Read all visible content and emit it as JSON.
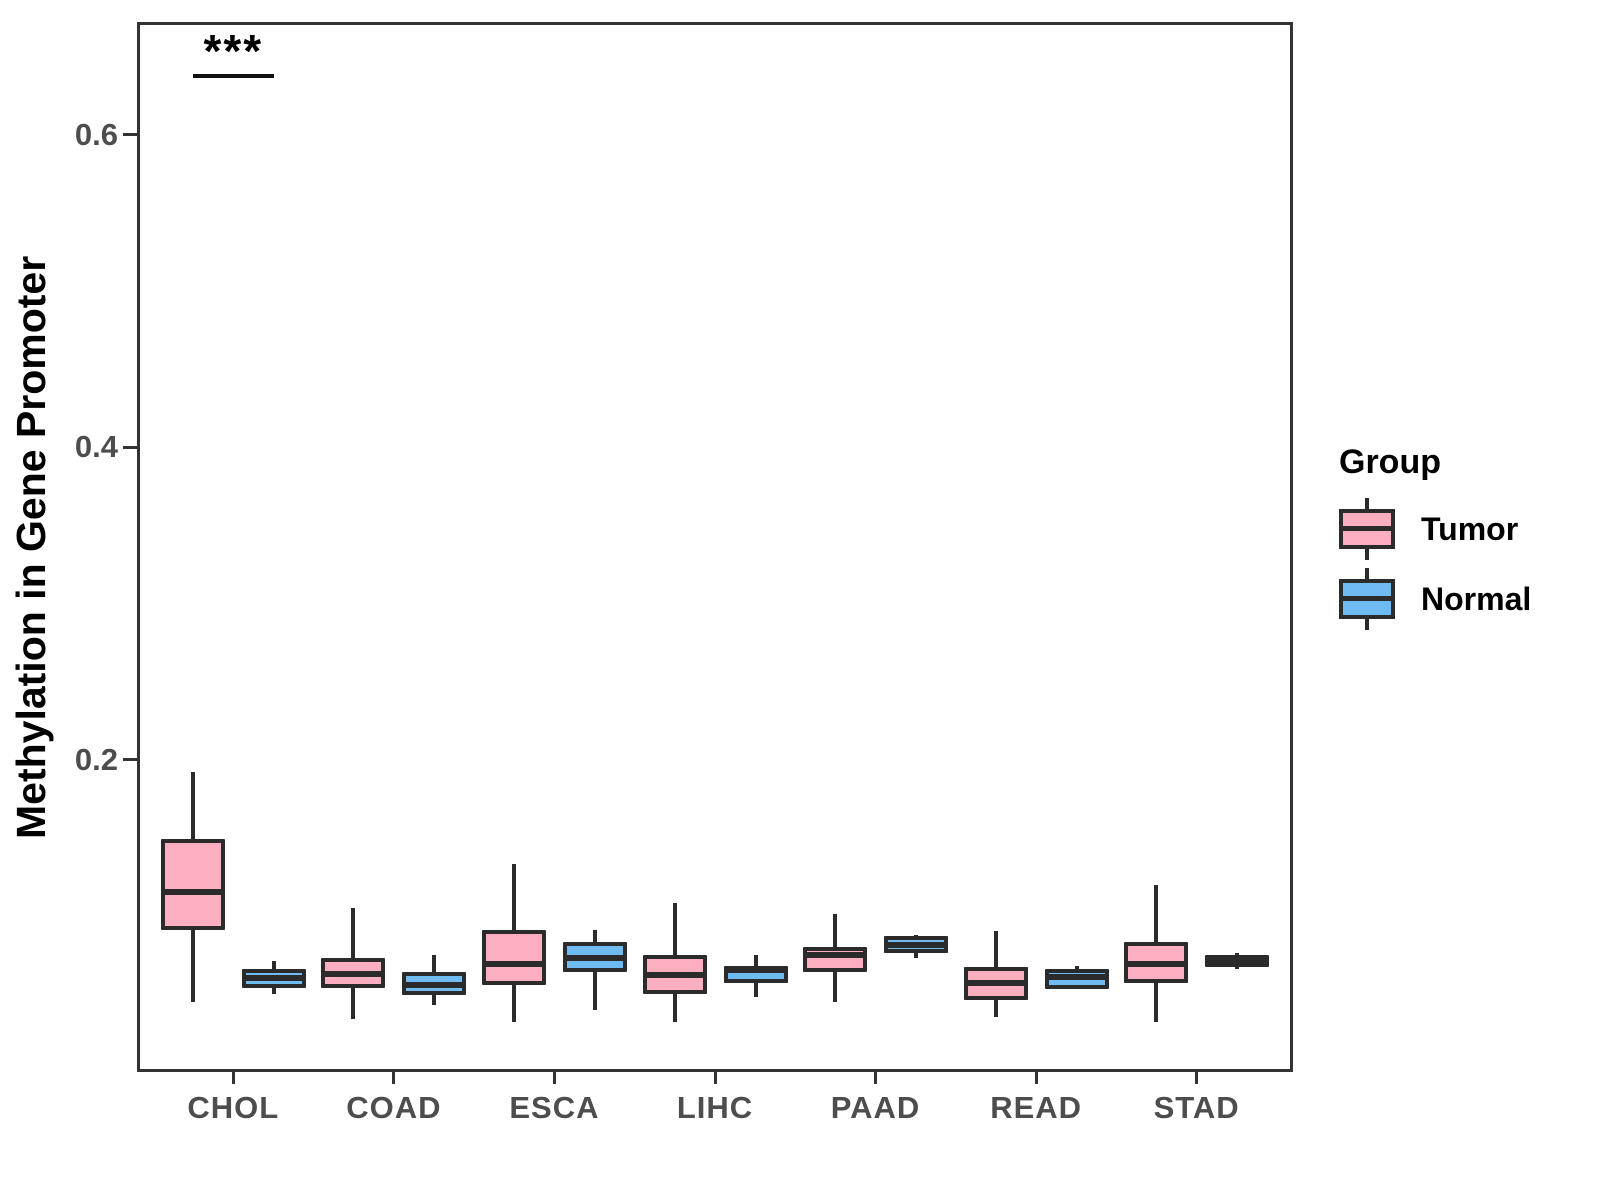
{
  "chart_data": {
    "type": "boxplot",
    "title": "",
    "xlabel": "",
    "ylabel": "Methylation in Gene Promoter",
    "categories": [
      "CHOL",
      "COAD",
      "ESCA",
      "LIHC",
      "PAAD",
      "READ",
      "STAD"
    ],
    "y_axis": {
      "tick_labels": [
        "0.2",
        "0.4",
        "0.6"
      ],
      "tick_values": [
        0.2,
        0.4,
        0.6
      ],
      "range": [
        0,
        0.672
      ],
      "grid": false
    },
    "legend": {
      "title": "Group",
      "position": "right",
      "entries": [
        {
          "label": "Tumor",
          "color": "#FBAFC1"
        },
        {
          "label": "Normal",
          "color": "#70BCF2"
        }
      ]
    },
    "series": [
      {
        "name": "Tumor",
        "color": "#FBAFC1",
        "data": [
          {
            "category": "CHOL",
            "low": 0.045,
            "q1": 0.091,
            "median": 0.115,
            "q3": 0.149,
            "high": 0.192
          },
          {
            "category": "COAD",
            "low": 0.034,
            "q1": 0.054,
            "median": 0.063,
            "q3": 0.073,
            "high": 0.105
          },
          {
            "category": "ESCA",
            "low": 0.032,
            "q1": 0.056,
            "median": 0.069,
            "q3": 0.091,
            "high": 0.133
          },
          {
            "category": "LIHC",
            "low": 0.032,
            "q1": 0.05,
            "median": 0.062,
            "q3": 0.075,
            "high": 0.108
          },
          {
            "category": "PAAD",
            "low": 0.045,
            "q1": 0.064,
            "median": 0.075,
            "q3": 0.08,
            "high": 0.101
          },
          {
            "category": "READ",
            "low": 0.035,
            "q1": 0.046,
            "median": 0.057,
            "q3": 0.067,
            "high": 0.09
          },
          {
            "category": "STAD",
            "low": 0.032,
            "q1": 0.057,
            "median": 0.069,
            "q3": 0.083,
            "high": 0.12
          }
        ]
      },
      {
        "name": "Normal",
        "color": "#70BCF2",
        "data": [
          {
            "category": "CHOL",
            "low": 0.05,
            "q1": 0.054,
            "median": 0.06,
            "q3": 0.066,
            "high": 0.071
          },
          {
            "category": "COAD",
            "low": 0.043,
            "q1": 0.049,
            "median": 0.056,
            "q3": 0.064,
            "high": 0.075
          },
          {
            "category": "ESCA",
            "low": 0.04,
            "q1": 0.064,
            "median": 0.073,
            "q3": 0.083,
            "high": 0.091
          },
          {
            "category": "LIHC",
            "low": 0.048,
            "q1": 0.057,
            "median": 0.065,
            "q3": 0.068,
            "high": 0.075
          },
          {
            "category": "PAAD",
            "low": 0.073,
            "q1": 0.076,
            "median": 0.081,
            "q3": 0.087,
            "high": 0.088
          },
          {
            "category": "READ",
            "low": 0.053,
            "q1": 0.053,
            "median": 0.061,
            "q3": 0.066,
            "high": 0.068
          },
          {
            "category": "STAD",
            "low": 0.066,
            "q1": 0.067,
            "median": 0.071,
            "q3": 0.075,
            "high": 0.076
          }
        ]
      }
    ],
    "annotations": [
      {
        "category": "CHOL",
        "label": "***",
        "y": 0.639
      }
    ],
    "style": {
      "box_border": "#2B2B2B",
      "panel_border": "#333333",
      "axis_text_color": "#4D4D4D",
      "title_color": "#000000",
      "background": "#FFFFFF"
    }
  }
}
